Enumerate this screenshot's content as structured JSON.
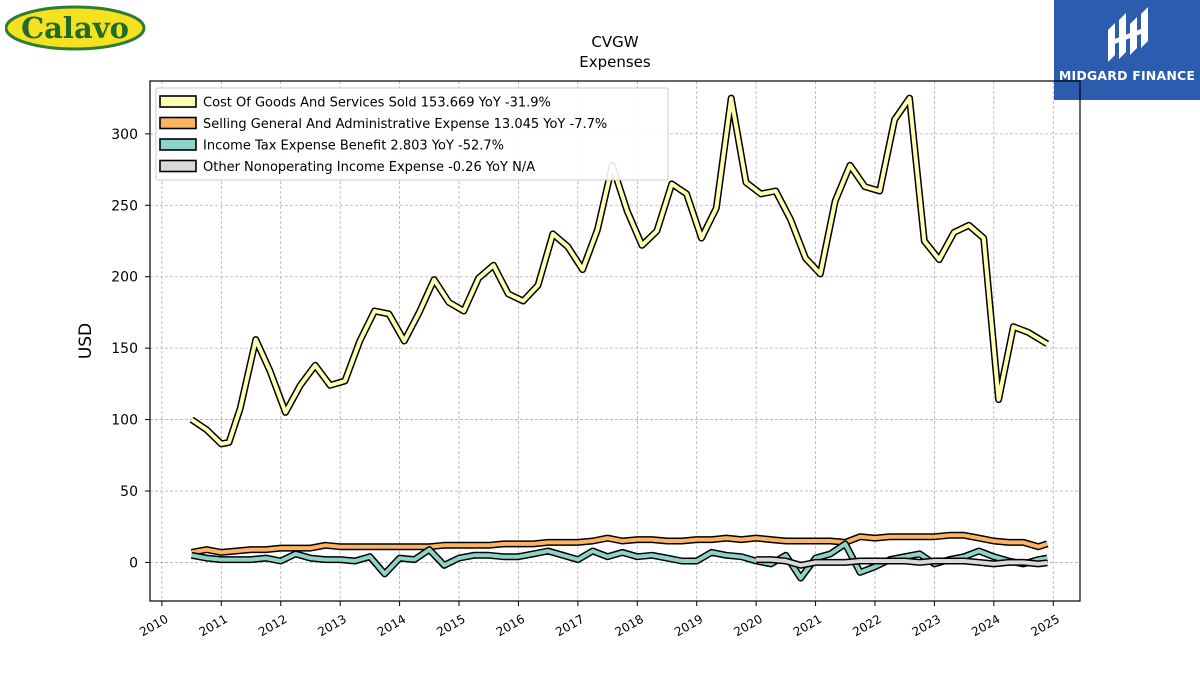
{
  "branding": {
    "left_logo_text": "Calavo",
    "right_logo_text": "MIDGARD FINANCE"
  },
  "chart_data": {
    "type": "line",
    "title": "CVGW",
    "subtitle": "Expenses",
    "xlabel": "",
    "ylabel": "USD",
    "xlim": [
      2009.8,
      2025.45
    ],
    "ylim": [
      -27,
      337
    ],
    "x_ticks": [
      "2010",
      "2011",
      "2012",
      "2013",
      "2014",
      "2015",
      "2016",
      "2017",
      "2018",
      "2019",
      "2020",
      "2021",
      "2022",
      "2023",
      "2024",
      "2025"
    ],
    "y_ticks": [
      "0",
      "50",
      "100",
      "150",
      "200",
      "250",
      "300"
    ],
    "grid": true,
    "legend_position": "top-left",
    "series": [
      {
        "name": "Cost Of Goods And Services Sold",
        "legend": "Cost Of Goods And Services Sold  153.669 YoY -31.9%",
        "color": "#ffffb2",
        "x": [
          2010.5,
          2010.75,
          2011.0,
          2011.13,
          2011.32,
          2011.58,
          2011.82,
          2012.08,
          2012.33,
          2012.58,
          2012.83,
          2013.08,
          2013.33,
          2013.58,
          2013.82,
          2014.08,
          2014.33,
          2014.58,
          2014.83,
          2015.08,
          2015.33,
          2015.58,
          2015.83,
          2016.08,
          2016.33,
          2016.58,
          2016.83,
          2017.08,
          2017.33,
          2017.58,
          2017.83,
          2018.08,
          2018.33,
          2018.58,
          2018.83,
          2019.08,
          2019.33,
          2019.58,
          2019.83,
          2020.08,
          2020.33,
          2020.58,
          2020.83,
          2021.08,
          2021.33,
          2021.58,
          2021.83,
          2022.08,
          2022.33,
          2022.58,
          2022.83,
          2023.08,
          2023.33,
          2023.58,
          2023.83,
          2024.08,
          2024.33,
          2024.58,
          2024.9
        ],
        "values": [
          100,
          93,
          83,
          84,
          108,
          156,
          134,
          105,
          124,
          138,
          124,
          127,
          155,
          176,
          174,
          155,
          175,
          198,
          182,
          176,
          199,
          208,
          188,
          183,
          194,
          230,
          221,
          205,
          233,
          278,
          246,
          222,
          232,
          265,
          258,
          227,
          248,
          325,
          266,
          258,
          260,
          240,
          213,
          202,
          253,
          278,
          263,
          260,
          310,
          325,
          225,
          212,
          231,
          236,
          227,
          114,
          165,
          161,
          153
        ]
      },
      {
        "name": "Selling General And Administrative Expense",
        "legend": "Selling General And Administrative Expense  13.045 YoY -7.7%",
        "color": "#fdb462",
        "x": [
          2010.5,
          2010.75,
          2011.0,
          2011.25,
          2011.5,
          2011.75,
          2012.0,
          2012.25,
          2012.5,
          2012.75,
          2013.0,
          2013.25,
          2013.5,
          2013.75,
          2014.0,
          2014.25,
          2014.5,
          2014.75,
          2015.0,
          2015.25,
          2015.5,
          2015.75,
          2016.0,
          2016.25,
          2016.5,
          2016.75,
          2017.0,
          2017.25,
          2017.5,
          2017.75,
          2018.0,
          2018.25,
          2018.5,
          2018.75,
          2019.0,
          2019.25,
          2019.5,
          2019.75,
          2020.0,
          2020.25,
          2020.5,
          2020.75,
          2021.0,
          2021.25,
          2021.5,
          2021.75,
          2022.0,
          2022.25,
          2022.5,
          2022.75,
          2023.0,
          2023.25,
          2023.5,
          2023.75,
          2024.0,
          2024.25,
          2024.5,
          2024.75,
          2024.9
        ],
        "values": [
          7,
          9,
          7,
          8,
          9,
          9,
          10,
          10,
          10,
          12,
          11,
          11,
          11,
          11,
          11,
          11,
          11,
          12,
          12,
          12,
          12,
          13,
          13,
          13,
          14,
          14,
          14,
          15,
          17,
          15,
          16,
          16,
          15,
          15,
          16,
          16,
          17,
          16,
          17,
          16,
          15,
          15,
          15,
          15,
          14,
          18,
          17,
          18,
          18,
          18,
          18,
          19,
          19,
          17,
          15,
          14,
          14,
          11,
          13
        ]
      },
      {
        "name": "Income Tax Expense Benefit",
        "legend": "Income Tax Expense Benefit  2.803 YoY -52.7%",
        "color": "#8dd3c7",
        "x": [
          2010.5,
          2010.75,
          2011.0,
          2011.25,
          2011.5,
          2011.75,
          2012.0,
          2012.25,
          2012.5,
          2012.75,
          2013.0,
          2013.25,
          2013.5,
          2013.75,
          2014.0,
          2014.25,
          2014.5,
          2014.75,
          2015.0,
          2015.25,
          2015.5,
          2015.75,
          2016.0,
          2016.25,
          2016.5,
          2016.75,
          2017.0,
          2017.25,
          2017.5,
          2017.75,
          2018.0,
          2018.25,
          2018.5,
          2018.75,
          2019.0,
          2019.25,
          2019.5,
          2019.75,
          2020.0,
          2020.25,
          2020.5,
          2020.75,
          2021.0,
          2021.25,
          2021.5,
          2021.75,
          2022.0,
          2022.25,
          2022.5,
          2022.75,
          2023.0,
          2023.25,
          2023.5,
          2023.75,
          2024.0,
          2024.25,
          2024.5,
          2024.75,
          2024.9
        ],
        "values": [
          5,
          3,
          2,
          2,
          2,
          3,
          1,
          6,
          3,
          2,
          2,
          1,
          4,
          -8,
          3,
          2,
          9,
          -2,
          3,
          5,
          5,
          4,
          4,
          6,
          8,
          5,
          2,
          8,
          4,
          7,
          4,
          5,
          3,
          1,
          1,
          7,
          5,
          4,
          1,
          -1,
          5,
          -11,
          3,
          6,
          13,
          -7,
          -3,
          2,
          4,
          6,
          -1,
          2,
          4,
          8,
          4,
          1,
          -1,
          2,
          3
        ]
      },
      {
        "name": "Other Nonoperating Income Expense",
        "legend": "Other Nonoperating Income Expense  -0.26 YoY N/A",
        "color": "#d9d9d9",
        "x": [
          2020.0,
          2020.25,
          2020.5,
          2020.75,
          2021.0,
          2021.25,
          2021.5,
          2021.75,
          2022.0,
          2022.25,
          2022.5,
          2022.75,
          2023.0,
          2023.25,
          2023.5,
          2023.75,
          2024.0,
          2024.25,
          2024.5,
          2024.75,
          2024.9
        ],
        "values": [
          2,
          2,
          1,
          -2,
          0,
          0,
          0,
          1,
          1,
          1,
          1,
          0,
          1,
          1,
          1,
          0,
          -1,
          0,
          0,
          -1,
          -0.26
        ]
      }
    ]
  }
}
